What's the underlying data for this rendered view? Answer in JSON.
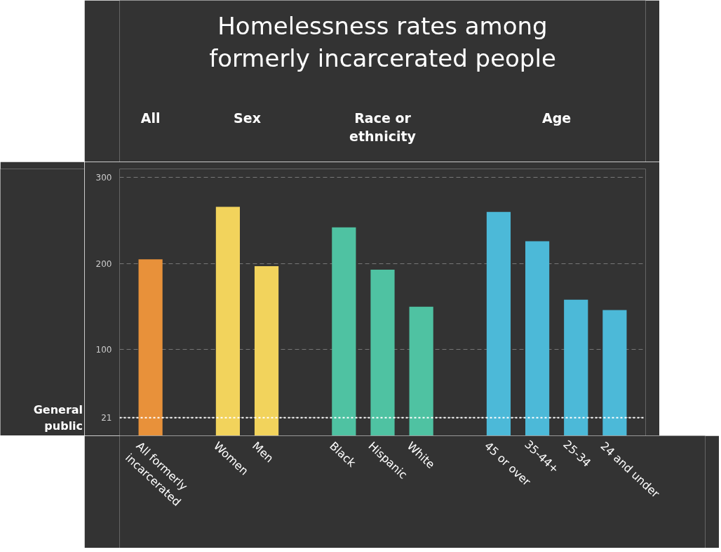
{
  "chart_data": {
    "type": "bar",
    "title": "Homelessness rates among\nformerly incarcerated people",
    "categories": [
      "All formerly\nincarcerated",
      null,
      "Women",
      "Men",
      null,
      "Black",
      "Hispanic",
      "White",
      null,
      "45 or over",
      "35-44+",
      "25-34",
      "24 and under"
    ],
    "values": [
      205,
      null,
      266,
      197,
      null,
      242,
      193,
      150,
      null,
      260,
      226,
      158,
      146
    ],
    "colors": [
      "#e8913a",
      null,
      "#f2d35c",
      "#f2d35c",
      null,
      "#4fc2a2",
      "#4fc2a2",
      "#4fc2a2",
      null,
      "#4cb9d8",
      "#4cb9d8",
      "#4cb9d8",
      "#4cb9d8"
    ],
    "annotations": [
      "All",
      "Sex",
      "Race or\nethnicity",
      "Age"
    ],
    "ylim": [
      0,
      310
    ],
    "yticks": [
      21,
      100,
      200,
      300
    ],
    "ref_lines": [
      {
        "axis": "y",
        "value": 21,
        "label": "General\npublic",
        "color": "#ffffff",
        "line_style": "dotted"
      }
    ],
    "grid": "y",
    "legend": false
  }
}
